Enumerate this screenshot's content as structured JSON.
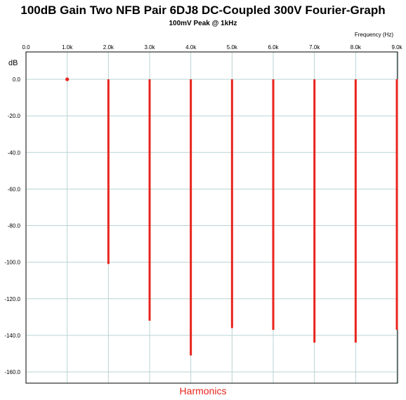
{
  "chart_data": {
    "type": "bar",
    "title": "100dB Gain Two NFB Pair 6DJ8 DC-Coupled 300V Fourier-Graph",
    "subtitle": "100mV Peak @ 1kHz",
    "xlabel": "Harmonics",
    "x_unit_label": "Frequency   (Hz)",
    "ylabel": "dB",
    "xlim": [
      0,
      9000
    ],
    "ylim": [
      -165,
      8
    ],
    "x_ticks": [
      0,
      1000,
      2000,
      3000,
      4000,
      5000,
      6000,
      7000,
      8000,
      9000
    ],
    "x_tick_labels": [
      "0.0",
      "1.0k",
      "2.0k",
      "3.0k",
      "4.0k",
      "5.0k",
      "6.0k",
      "7.0k",
      "8.0k",
      "9.0k"
    ],
    "y_ticks": [
      0,
      -20,
      -40,
      -60,
      -80,
      -100,
      -120,
      -140,
      -160
    ],
    "y_tick_labels": [
      "0.0",
      "-20.0",
      "-40.0",
      "-60.0",
      "-80.0",
      "-100.0",
      "-120.0",
      "-140.0",
      "-160.0"
    ],
    "grid": true,
    "bar_color": "#e8241c",
    "fundamental": {
      "x": 1000,
      "y": 0
    },
    "harmonics": [
      {
        "x": 2000,
        "y": -101
      },
      {
        "x": 3000,
        "y": -132
      },
      {
        "x": 4000,
        "y": -151
      },
      {
        "x": 5000,
        "y": -136
      },
      {
        "x": 6000,
        "y": -137
      },
      {
        "x": 7000,
        "y": -144
      },
      {
        "x": 8000,
        "y": -144
      },
      {
        "x": 9000,
        "y": -137
      }
    ]
  }
}
